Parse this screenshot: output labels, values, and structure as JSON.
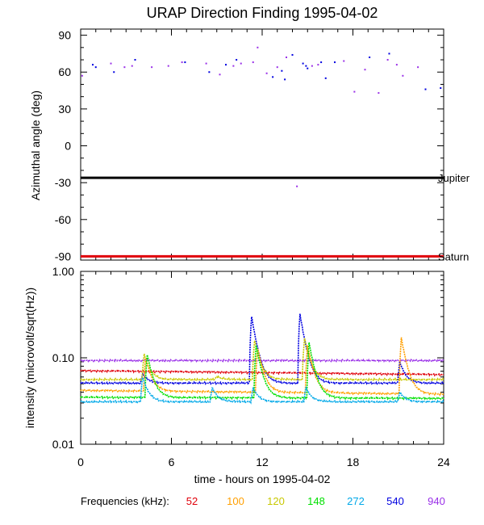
{
  "title": "URAP Direction Finding  1995-04-02",
  "xlabel": "time - hours on 1995-04-02",
  "freq_legend": {
    "label": "Frequencies (kHz):",
    "items": [
      {
        "value": "52",
        "color": "#e0000a"
      },
      {
        "value": "100",
        "color": "#ff9f00"
      },
      {
        "value": "120",
        "color": "#c8c800"
      },
      {
        "value": "148",
        "color": "#00e000"
      },
      {
        "value": "272",
        "color": "#00a8e8"
      },
      {
        "value": "540",
        "color": "#0000e0"
      },
      {
        "value": "940",
        "color": "#9a30e8"
      }
    ]
  },
  "chart_data": [
    {
      "type": "scatter",
      "ylabel": "Azimuthal angle (deg)",
      "xlim": [
        0,
        24
      ],
      "ylim": [
        -93,
        95
      ],
      "xticks": [
        "0",
        "6",
        "12",
        "18",
        "24"
      ],
      "yticks": [
        "90",
        "60",
        "30",
        "0",
        "-30",
        "-60",
        "-90"
      ],
      "reference_lines": [
        {
          "name": "Jupiter",
          "y": -26,
          "color": "#000000"
        },
        {
          "name": "Saturn",
          "y": -90,
          "color": "#e0000a"
        }
      ],
      "series": [
        {
          "color": "#9a30e8",
          "points": [
            [
              0.1,
              57
            ],
            [
              2.0,
              67
            ],
            [
              2.9,
              64
            ],
            [
              3.4,
              65
            ],
            [
              4.7,
              64
            ],
            [
              5.8,
              65
            ],
            [
              6.7,
              68
            ],
            [
              8.3,
              67
            ],
            [
              9.2,
              58
            ],
            [
              10.1,
              65
            ],
            [
              10.6,
              67
            ],
            [
              11.4,
              68
            ],
            [
              11.7,
              80
            ],
            [
              12.3,
              59
            ],
            [
              13.0,
              64
            ],
            [
              13.6,
              72
            ],
            [
              14.3,
              -33
            ],
            [
              15.3,
              65
            ],
            [
              15.7,
              66
            ],
            [
              17.4,
              69
            ],
            [
              18.1,
              44
            ],
            [
              18.8,
              62
            ],
            [
              19.7,
              43
            ],
            [
              20.3,
              70
            ],
            [
              20.9,
              66
            ],
            [
              21.3,
              57
            ],
            [
              22.3,
              64
            ]
          ]
        },
        {
          "color": "#0000e0",
          "points": [
            [
              0.8,
              66
            ],
            [
              1.0,
              64
            ],
            [
              2.2,
              60
            ],
            [
              3.6,
              70
            ],
            [
              6.9,
              68
            ],
            [
              8.5,
              60
            ],
            [
              9.6,
              66
            ],
            [
              10.3,
              70
            ],
            [
              12.7,
              56
            ],
            [
              13.3,
              61
            ],
            [
              13.5,
              54
            ],
            [
              14.0,
              74
            ],
            [
              14.7,
              67
            ],
            [
              14.9,
              65
            ],
            [
              15.0,
              63
            ],
            [
              15.9,
              68
            ],
            [
              16.2,
              55
            ],
            [
              16.8,
              68
            ],
            [
              19.1,
              72
            ],
            [
              20.4,
              75
            ],
            [
              22.8,
              46
            ],
            [
              23.8,
              47
            ]
          ]
        }
      ]
    },
    {
      "type": "line",
      "ylabel": "intensity (microvolt/sqrt(Hz))",
      "xlim": [
        0,
        24
      ],
      "ylim": [
        0.01,
        1.0
      ],
      "yscale": "log",
      "xticks": [
        "0",
        "6",
        "12",
        "18",
        "24"
      ],
      "yticks": [
        "1.00",
        "0.10",
        "0.01"
      ],
      "series": [
        {
          "color": "#9a30e8",
          "base": 0.093,
          "end": 0.093,
          "bursts": []
        },
        {
          "color": "#e0000a",
          "base": 0.071,
          "end": 0.064,
          "bursts": []
        },
        {
          "color": "#0000e0",
          "base": 0.051,
          "end": 0.051,
          "bursts": [
            [
              4.1,
              0.065
            ],
            [
              11.3,
              0.3
            ],
            [
              14.5,
              0.32
            ],
            [
              21.1,
              0.09
            ]
          ]
        },
        {
          "color": "#c8c800",
          "base": 0.056,
          "end": 0.056,
          "bursts": [
            [
              4.2,
              0.11
            ],
            [
              9.0,
              0.061
            ],
            [
              11.5,
              0.16
            ],
            [
              14.8,
              0.17
            ]
          ]
        },
        {
          "color": "#ff9f00",
          "base": 0.042,
          "end": 0.038,
          "bursts": [
            [
              4.3,
              0.1
            ],
            [
              11.7,
              0.13
            ],
            [
              15.0,
              0.14
            ],
            [
              21.2,
              0.17
            ]
          ]
        },
        {
          "color": "#00e000",
          "base": 0.035,
          "end": 0.034,
          "bursts": [
            [
              4.4,
              0.11
            ],
            [
              11.6,
              0.14
            ],
            [
              15.1,
              0.15
            ]
          ]
        },
        {
          "color": "#00a8e8",
          "base": 0.031,
          "end": 0.031,
          "bursts": [
            [
              4.1,
              0.06
            ],
            [
              8.7,
              0.045
            ],
            [
              11.4,
              0.045
            ],
            [
              14.9,
              0.045
            ],
            [
              21.1,
              0.04
            ]
          ]
        }
      ]
    }
  ]
}
